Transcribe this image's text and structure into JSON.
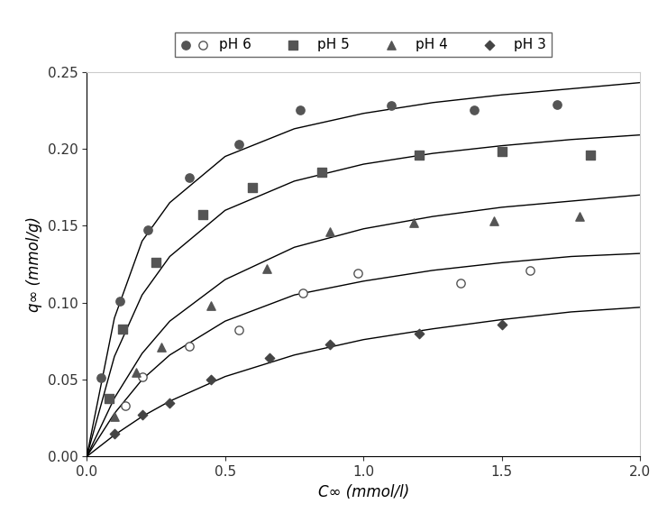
{
  "chart_data": {
    "type": "scatter",
    "x_label": "C∞ (mmol/l)",
    "y_label": "q∞ (mmol/g)",
    "xlim": [
      0.0,
      2.0
    ],
    "ylim": [
      0.0,
      0.25
    ],
    "xticks": [
      0.0,
      0.5,
      1.0,
      1.5,
      2.0
    ],
    "yticks": [
      {
        "value": 0.0,
        "label": "0.00"
      },
      {
        "value": 0.05,
        "label": "0.05"
      },
      {
        "value": 0.1,
        "label": "0.10"
      },
      {
        "value": 0.15,
        "label": "0.15"
      },
      {
        "value": 0.2,
        "label": "0.20"
      },
      {
        "value": 0.25,
        "label": "0.25"
      }
    ],
    "grid": false,
    "legend": "top",
    "series": [
      {
        "name": "pH 6",
        "type": "scatter",
        "marker": "circle",
        "color": "#555555",
        "x": [
          0.05,
          0.12,
          0.22,
          0.37,
          0.55,
          0.77,
          1.1,
          1.4,
          1.7
        ],
        "values": [
          0.051,
          0.101,
          0.147,
          0.181,
          0.203,
          0.225,
          0.228,
          0.225,
          0.229
        ]
      },
      {
        "name": "pH 6",
        "type": "scatter",
        "marker": "open_circle",
        "color": "#555555",
        "x": [
          0.14,
          0.2,
          0.37,
          0.55,
          0.78,
          0.98,
          1.35,
          1.6
        ],
        "values": [
          0.033,
          0.052,
          0.072,
          0.082,
          0.106,
          0.119,
          0.113,
          0.121
        ]
      },
      {
        "name": "pH 5",
        "type": "scatter",
        "marker": "square",
        "color": "#555555",
        "x": [
          0.08,
          0.13,
          0.25,
          0.42,
          0.6,
          0.85,
          1.2,
          1.5,
          1.82
        ],
        "values": [
          0.038,
          0.083,
          0.126,
          0.157,
          0.175,
          0.185,
          0.196,
          0.198,
          0.196
        ]
      },
      {
        "name": "pH 4",
        "type": "scatter",
        "marker": "triangle",
        "color": "#555555",
        "x": [
          0.1,
          0.18,
          0.27,
          0.45,
          0.65,
          0.88,
          1.18,
          1.47,
          1.78
        ],
        "values": [
          0.026,
          0.055,
          0.071,
          0.098,
          0.122,
          0.146,
          0.152,
          0.153,
          0.156
        ]
      },
      {
        "name": "pH 3",
        "type": "scatter",
        "marker": "diamond",
        "color": "#444444",
        "x": [
          0.1,
          0.2,
          0.3,
          0.45,
          0.66,
          0.88,
          1.2,
          1.5
        ],
        "values": [
          0.015,
          0.027,
          0.035,
          0.05,
          0.064,
          0.073,
          0.08,
          0.086
        ]
      },
      {
        "type": "line",
        "line_style": "solid",
        "color": "#000000",
        "x": [
          0.0,
          0.1,
          0.2,
          0.3,
          0.5,
          0.75,
          1.0,
          1.25,
          1.5,
          1.75,
          2.0
        ],
        "values": [
          0.0,
          0.09,
          0.14,
          0.165,
          0.195,
          0.213,
          0.223,
          0.23,
          0.235,
          0.239,
          0.243
        ]
      },
      {
        "type": "line",
        "line_style": "solid",
        "color": "#000000",
        "x": [
          0.0,
          0.1,
          0.2,
          0.3,
          0.5,
          0.75,
          1.0,
          1.25,
          1.5,
          1.75,
          2.0
        ],
        "values": [
          0.0,
          0.065,
          0.105,
          0.13,
          0.16,
          0.179,
          0.19,
          0.197,
          0.202,
          0.206,
          0.209
        ]
      },
      {
        "type": "line",
        "line_style": "solid",
        "color": "#000000",
        "x": [
          0.0,
          0.1,
          0.2,
          0.3,
          0.5,
          0.75,
          1.0,
          1.25,
          1.5,
          1.75,
          2.0
        ],
        "values": [
          0.0,
          0.038,
          0.067,
          0.088,
          0.115,
          0.136,
          0.148,
          0.156,
          0.162,
          0.166,
          0.17
        ]
      },
      {
        "type": "line",
        "line_style": "solid",
        "color": "#000000",
        "x": [
          0.0,
          0.1,
          0.2,
          0.3,
          0.5,
          0.75,
          1.0,
          1.25,
          1.5,
          1.75,
          2.0
        ],
        "values": [
          0.0,
          0.028,
          0.05,
          0.066,
          0.088,
          0.105,
          0.114,
          0.121,
          0.126,
          0.13,
          0.132
        ]
      },
      {
        "type": "line",
        "line_style": "solid",
        "color": "#000000",
        "x": [
          0.0,
          0.1,
          0.2,
          0.3,
          0.5,
          0.75,
          1.0,
          1.25,
          1.5,
          1.75,
          2.0
        ],
        "values": [
          0.0,
          0.014,
          0.026,
          0.036,
          0.052,
          0.066,
          0.076,
          0.083,
          0.089,
          0.094,
          0.097
        ]
      }
    ]
  }
}
